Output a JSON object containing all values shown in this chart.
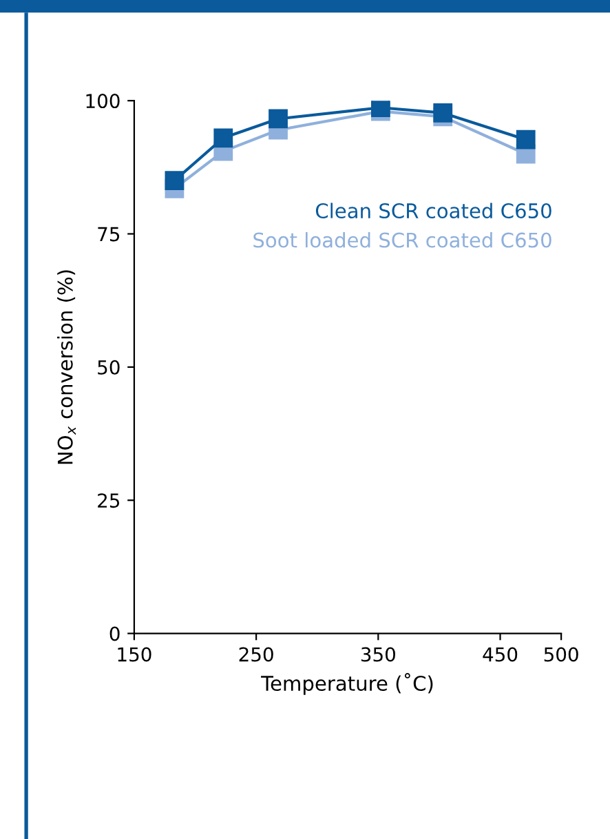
{
  "chart_data": {
    "type": "line",
    "xlabel": "Temperature (˚C)",
    "ylabel": "NO$_{x}$ conversion (%)",
    "xlim": [
      150,
      500
    ],
    "xticks": [
      150,
      250,
      350,
      450,
      500
    ],
    "ylim": [
      0,
      100
    ],
    "yticks": [
      0,
      25,
      50,
      75,
      100
    ],
    "marker": "square",
    "line_style": "solid",
    "grid": false,
    "series": [
      {
        "name": "Soot loaded SCR coated C650",
        "color": "#8fb0dc",
        "x": [
          183,
          223,
          268,
          352,
          403,
          471
        ],
        "values": [
          83.5,
          90.5,
          94.5,
          98,
          97,
          90
        ]
      },
      {
        "name": "Clean SCR coated C650",
        "color": "#0a5a9c",
        "x": [
          183,
          223,
          268,
          352,
          403,
          471
        ],
        "values": [
          85,
          93,
          96.6,
          98.7,
          97.7,
          92.7
        ]
      }
    ]
  }
}
